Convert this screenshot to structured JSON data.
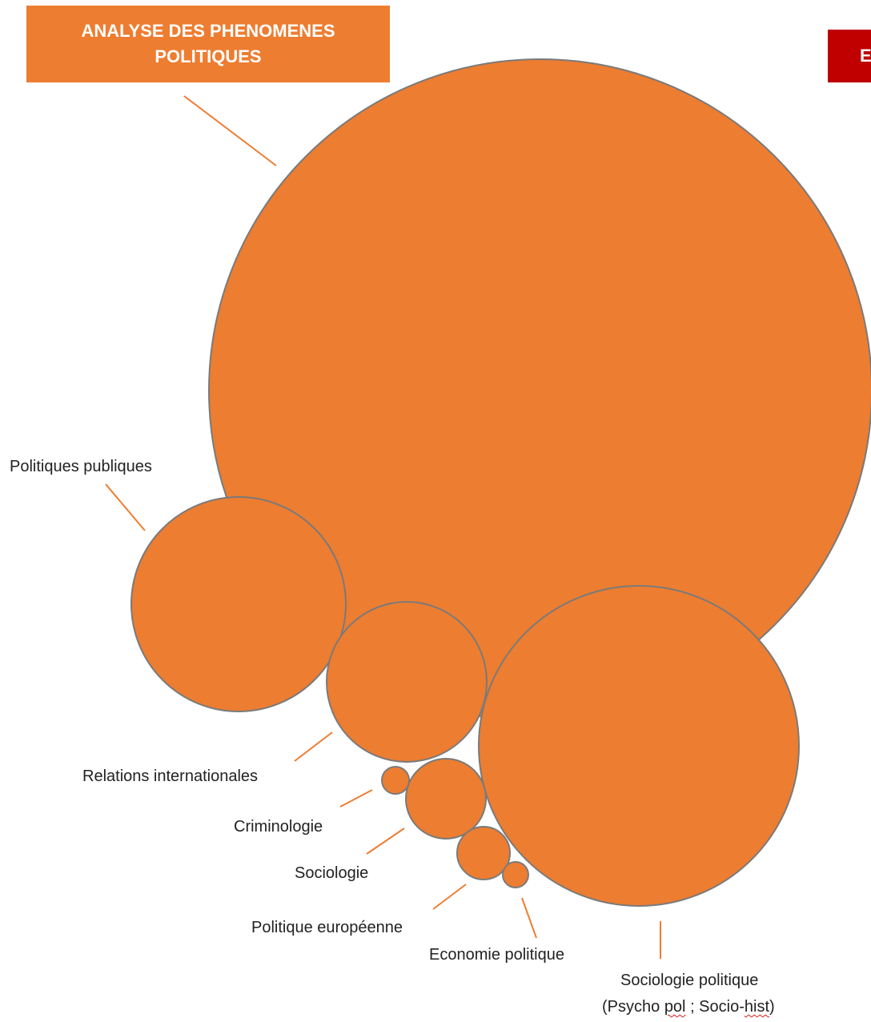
{
  "colors": {
    "bubble": "#ED7D31",
    "bubble_stroke": "#7A7A7A",
    "title_bg": "#ED7D31",
    "corner_bg": "#C00000",
    "leader": "#ED7D31"
  },
  "title": {
    "line1": "ANALYSE DES PHENOMENES",
    "line2": "POLITIQUES"
  },
  "corner_label": "E",
  "labels": {
    "politiques_publiques": "Politiques publiques",
    "relations_internationales": "Relations internationales",
    "criminologie": "Criminologie",
    "sociologie": "Sociologie",
    "politique_europeenne": "Politique européenne",
    "economie_politique": "Economie politique",
    "sociologie_politique": "Sociologie politique",
    "sociologie_politique_sub_open": "(Psycho ",
    "sociologie_politique_sub_pol": "pol",
    "sociologie_politique_sub_mid": " ; Socio-",
    "sociologie_politique_sub_hist": "hist",
    "sociologie_politique_sub_close": ")"
  }
}
